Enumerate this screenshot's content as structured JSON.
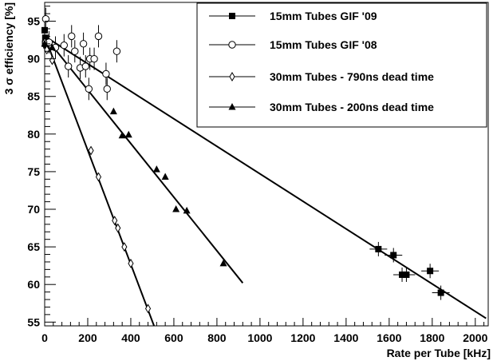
{
  "chart_data": {
    "type": "scatter",
    "xlabel": "Rate per Tube [kHz]",
    "ylabel": "3 σ efficiency [%]",
    "xlim": [
      0,
      2060
    ],
    "ylim": [
      54.5,
      97.5
    ],
    "x_ticks": [
      0,
      200,
      400,
      600,
      800,
      1000,
      1200,
      1400,
      1600,
      1800,
      2000
    ],
    "x_tick_labels": [
      "0",
      "200",
      "400",
      "600",
      "800",
      "1000",
      "1200",
      "1400",
      "1600",
      "1800",
      "2000"
    ],
    "y_ticks": [
      55,
      60,
      65,
      70,
      75,
      80,
      85,
      90,
      95
    ],
    "y_tick_labels": [
      "55",
      "60",
      "65",
      "70",
      "75",
      "80",
      "85",
      "90",
      "95"
    ],
    "grid": false,
    "legend_position": "top-right",
    "series": [
      {
        "name": "15mm Tubes GIF '09",
        "marker": "filled-square",
        "points": [
          {
            "x": 0,
            "y": 93.8
          },
          {
            "x": 3,
            "y": 92.8
          },
          {
            "x": 2,
            "y": 92.0
          },
          {
            "x": 8,
            "y": 91.8
          },
          {
            "x": 1550,
            "y": 64.7
          },
          {
            "x": 1620,
            "y": 63.9
          },
          {
            "x": 1660,
            "y": 61.3
          },
          {
            "x": 1680,
            "y": 61.3
          },
          {
            "x": 1790,
            "y": 61.8
          },
          {
            "x": 1840,
            "y": 58.9
          }
        ],
        "fit": {
          "x": [
            0,
            2050
          ],
          "y": [
            93.0,
            55.5
          ]
        }
      },
      {
        "name": "15mm Tubes GIF '08",
        "marker": "open-circle",
        "points": [
          {
            "x": 5,
            "y": 95.3
          },
          {
            "x": 20,
            "y": 92.2
          },
          {
            "x": 50,
            "y": 91.5
          },
          {
            "x": 90,
            "y": 91.8
          },
          {
            "x": 110,
            "y": 89.0
          },
          {
            "x": 125,
            "y": 93.0
          },
          {
            "x": 140,
            "y": 91.0
          },
          {
            "x": 165,
            "y": 88.8
          },
          {
            "x": 180,
            "y": 92.0
          },
          {
            "x": 190,
            "y": 89.0
          },
          {
            "x": 210,
            "y": 90.0
          },
          {
            "x": 230,
            "y": 90.0
          },
          {
            "x": 250,
            "y": 93.0
          },
          {
            "x": 285,
            "y": 88.0
          },
          {
            "x": 290,
            "y": 86.0
          },
          {
            "x": 205,
            "y": 86.0
          },
          {
            "x": 335,
            "y": 91.0
          }
        ]
      },
      {
        "name": "30mm Tubes - 790ns dead time",
        "marker": "open-diamond",
        "points": [
          {
            "x": 0,
            "y": 92.2
          },
          {
            "x": 10,
            "y": 91.2
          },
          {
            "x": 35,
            "y": 89.8
          },
          {
            "x": 215,
            "y": 77.8
          },
          {
            "x": 250,
            "y": 74.3
          },
          {
            "x": 325,
            "y": 68.5
          },
          {
            "x": 340,
            "y": 67.5
          },
          {
            "x": 370,
            "y": 65.0
          },
          {
            "x": 400,
            "y": 62.8
          },
          {
            "x": 480,
            "y": 56.8
          }
        ],
        "fit": {
          "x": [
            0,
            508
          ],
          "y": [
            93.0,
            54.5
          ]
        }
      },
      {
        "name": "30mm Tubes - 200ns dead time",
        "marker": "filled-triangle",
        "points": [
          {
            "x": 0,
            "y": 92.0
          },
          {
            "x": 35,
            "y": 91.5
          },
          {
            "x": 320,
            "y": 83.0
          },
          {
            "x": 360,
            "y": 79.8
          },
          {
            "x": 390,
            "y": 79.9
          },
          {
            "x": 520,
            "y": 75.3
          },
          {
            "x": 560,
            "y": 74.3
          },
          {
            "x": 610,
            "y": 70.0
          },
          {
            "x": 660,
            "y": 69.8
          },
          {
            "x": 830,
            "y": 62.8
          }
        ],
        "fit": {
          "x": [
            0,
            920
          ],
          "y": [
            93.0,
            60.2
          ]
        }
      }
    ]
  }
}
